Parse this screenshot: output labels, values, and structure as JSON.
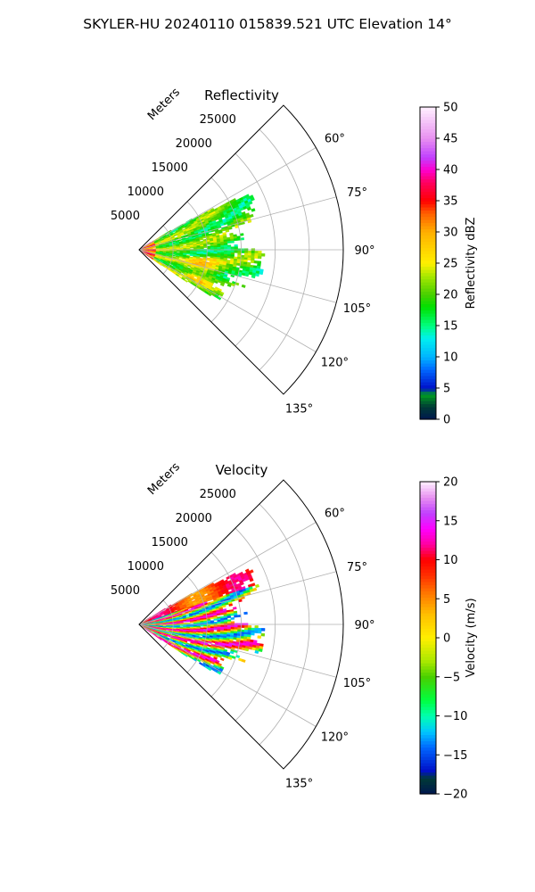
{
  "figure": {
    "suptitle": "SKYLER-HU  20240110  015839.521 UTC Elevation 14°"
  },
  "chart_data": [
    {
      "type": "heatmap",
      "subtype": "polar-sector (PPI)",
      "title": "Reflectivity",
      "range_label": "Meters",
      "range_ticks": [
        5000,
        10000,
        15000,
        20000,
        25000
      ],
      "range_tick_labels": [
        "5000",
        "10000",
        "15000",
        "20000",
        "25000"
      ],
      "range_max": 30000,
      "azimuth_ticks": [
        60,
        75,
        90,
        105,
        120,
        135
      ],
      "azimuth_tick_labels": [
        "60°",
        "75°",
        "90°",
        "105°",
        "120°",
        "135°"
      ],
      "azimuth_range": [
        45,
        135
      ],
      "grid": true,
      "colorbar": {
        "label": "Reflectivity dBZ",
        "min": 0,
        "max": 50,
        "ticks": [
          0,
          5,
          10,
          15,
          20,
          25,
          30,
          35,
          40,
          45,
          50
        ],
        "tick_labels": [
          "0",
          "5",
          "10",
          "15",
          "20",
          "25",
          "30",
          "35",
          "40",
          "45",
          "50"
        ],
        "stops": [
          {
            "v": 0,
            "c": "#001650"
          },
          {
            "v": 2,
            "c": "#003a36"
          },
          {
            "v": 4,
            "c": "#00a020"
          },
          {
            "v": 5,
            "c": "#0010c8"
          },
          {
            "v": 8,
            "c": "#0068ff"
          },
          {
            "v": 10,
            "c": "#00b4ff"
          },
          {
            "v": 13,
            "c": "#00f0f0"
          },
          {
            "v": 15,
            "c": "#00ff80"
          },
          {
            "v": 18,
            "c": "#00e000"
          },
          {
            "v": 20,
            "c": "#48d000"
          },
          {
            "v": 23,
            "c": "#a8e800"
          },
          {
            "v": 25,
            "c": "#fff000"
          },
          {
            "v": 30,
            "c": "#ffb000"
          },
          {
            "v": 33,
            "c": "#ff6000"
          },
          {
            "v": 35,
            "c": "#ff0000"
          },
          {
            "v": 38,
            "c": "#ff0060"
          },
          {
            "v": 40,
            "c": "#ff00d0"
          },
          {
            "v": 42,
            "c": "#c040ff"
          },
          {
            "v": 45,
            "c": "#e890f0"
          },
          {
            "v": 50,
            "c": "#fff0ff"
          }
        ]
      }
    },
    {
      "type": "heatmap",
      "subtype": "polar-sector (PPI)",
      "title": "Velocity",
      "range_label": "Meters",
      "range_ticks": [
        5000,
        10000,
        15000,
        20000,
        25000
      ],
      "range_tick_labels": [
        "5000",
        "10000",
        "15000",
        "20000",
        "25000"
      ],
      "range_max": 30000,
      "azimuth_ticks": [
        60,
        75,
        90,
        105,
        120,
        135
      ],
      "azimuth_tick_labels": [
        "60°",
        "75°",
        "90°",
        "105°",
        "120°",
        "135°"
      ],
      "azimuth_range": [
        45,
        135
      ],
      "grid": true,
      "colorbar": {
        "label": "Velocity (m/s)",
        "min": -20,
        "max": 20,
        "ticks": [
          -20,
          -15,
          -10,
          -5,
          0,
          5,
          10,
          15,
          20
        ],
        "tick_labels": [
          "−20",
          "−15",
          "−10",
          "−5",
          "0",
          "5",
          "10",
          "15",
          "20"
        ],
        "stops": [
          {
            "v": -20,
            "c": "#001650"
          },
          {
            "v": -18,
            "c": "#003a36"
          },
          {
            "v": -17,
            "c": "#0010c8"
          },
          {
            "v": -14,
            "c": "#0068ff"
          },
          {
            "v": -12,
            "c": "#00c8ff"
          },
          {
            "v": -10,
            "c": "#00ffb0"
          },
          {
            "v": -8,
            "c": "#00ff40"
          },
          {
            "v": -5,
            "c": "#48d000"
          },
          {
            "v": -3,
            "c": "#a8e800"
          },
          {
            "v": 0,
            "c": "#fff000"
          },
          {
            "v": 3,
            "c": "#ffc000"
          },
          {
            "v": 6,
            "c": "#ff7000"
          },
          {
            "v": 8,
            "c": "#ff3000"
          },
          {
            "v": 10,
            "c": "#ff0000"
          },
          {
            "v": 12,
            "c": "#ff00a0"
          },
          {
            "v": 14,
            "c": "#ff00ff"
          },
          {
            "v": 16,
            "c": "#c040ff"
          },
          {
            "v": 18,
            "c": "#e890f0"
          },
          {
            "v": 20,
            "c": "#fff0ff"
          }
        ]
      }
    }
  ]
}
